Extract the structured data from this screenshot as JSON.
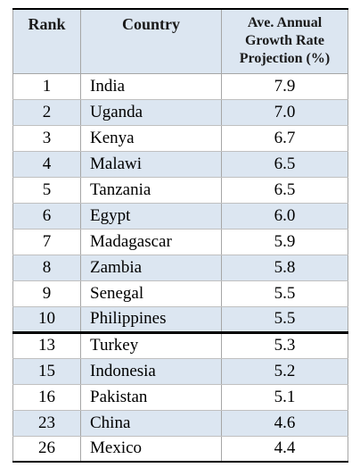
{
  "table": {
    "headers": {
      "rank": "Rank",
      "country": "Country",
      "growth_line1": "Ave. Annual",
      "growth_line2": "Growth Rate",
      "growth_line3": "Projection (%)"
    },
    "top_group": [
      {
        "rank": "1",
        "country": "India",
        "growth": "7.9"
      },
      {
        "rank": "2",
        "country": "Uganda",
        "growth": "7.0"
      },
      {
        "rank": "3",
        "country": "Kenya",
        "growth": "6.7"
      },
      {
        "rank": "4",
        "country": "Malawi",
        "growth": "6.5"
      },
      {
        "rank": "5",
        "country": "Tanzania",
        "growth": "6.5"
      },
      {
        "rank": "6",
        "country": "Egypt",
        "growth": "6.0"
      },
      {
        "rank": "7",
        "country": "Madagascar",
        "growth": "5.9"
      },
      {
        "rank": "8",
        "country": "Zambia",
        "growth": "5.8"
      },
      {
        "rank": "9",
        "country": "Senegal",
        "growth": "5.5"
      },
      {
        "rank": "10",
        "country": "Philippines",
        "growth": "5.5"
      }
    ],
    "other_group": [
      {
        "rank": "13",
        "country": "Turkey",
        "growth": "5.3"
      },
      {
        "rank": "15",
        "country": "Indonesia",
        "growth": "5.2"
      },
      {
        "rank": "16",
        "country": "Pakistan",
        "growth": "5.1"
      },
      {
        "rank": "23",
        "country": "China",
        "growth": "4.6"
      },
      {
        "rank": "26",
        "country": "Mexico",
        "growth": "4.4"
      }
    ]
  }
}
